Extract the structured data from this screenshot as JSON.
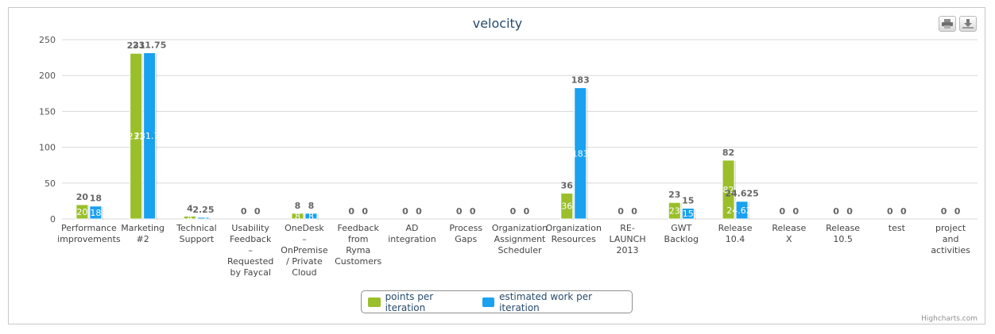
{
  "colors": {
    "points": "#9ABF2B",
    "estimated": "#1AA1F0",
    "grid": "#d8d8d8",
    "axis_text": "#555555",
    "label": "#666666"
  },
  "toolbar": {
    "print_icon": "printer-icon",
    "download_icon": "download-icon"
  },
  "legend": {
    "points_label": "points per iteration",
    "estimated_label": "estimated work per iteration",
    "placement": "bottom-center"
  },
  "credits": "Highcharts.com",
  "chart_data": {
    "type": "bar",
    "title": "velocity",
    "ylim": [
      0,
      250
    ],
    "yticks": [
      0,
      50,
      100,
      150,
      200,
      250
    ],
    "grid": true,
    "categories": [
      [
        "Performance",
        "improvements"
      ],
      [
        "Marketing",
        "#2"
      ],
      [
        "Technical",
        "Support"
      ],
      [
        "Usability",
        "Feedback",
        "–",
        "Requested",
        "by Faycal"
      ],
      [
        "OneDesk",
        "–",
        "OnPremise",
        "/ Private",
        "Cloud"
      ],
      [
        "Feedback",
        "from",
        "Ryma",
        "Customers"
      ],
      [
        "AD",
        "integration"
      ],
      [
        "Process",
        "Gaps"
      ],
      [
        "Organization",
        "Assignment",
        "Scheduler"
      ],
      [
        "Organization",
        "Resources"
      ],
      [
        "RE-",
        "LAUNCH",
        "2013"
      ],
      [
        "GWT",
        "Backlog"
      ],
      [
        "Release",
        "10.4"
      ],
      [
        "Release",
        "X"
      ],
      [
        "Release",
        "10.5"
      ],
      [
        "test"
      ],
      [
        "project",
        "and",
        "activities"
      ]
    ],
    "series": [
      {
        "name": "points per iteration",
        "values": [
          20,
          231,
          4,
          0,
          8,
          0,
          0,
          0,
          0,
          36,
          0,
          23,
          82,
          0,
          0,
          0,
          0
        ]
      },
      {
        "name": "estimated work per iteration",
        "values": [
          18,
          231.75,
          2.25,
          0,
          8,
          0,
          0,
          0,
          0,
          183,
          0,
          15,
          24.625,
          0,
          0,
          0,
          0
        ]
      }
    ]
  }
}
